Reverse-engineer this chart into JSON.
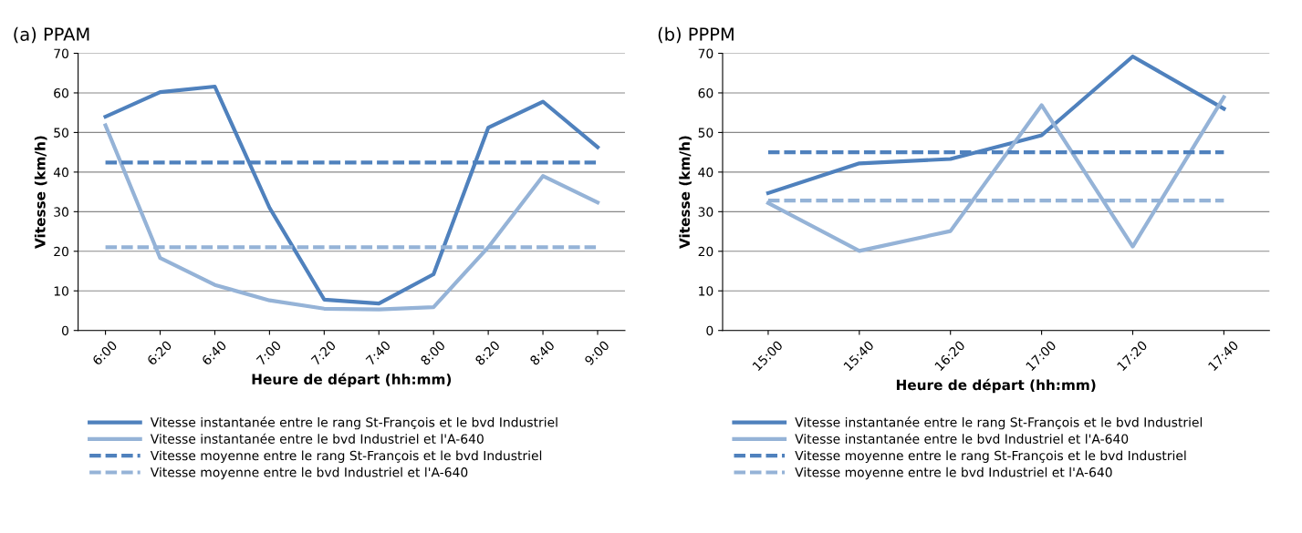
{
  "chart_data": [
    {
      "type": "line",
      "title": "(a) PPAM",
      "xlabel": "Heure de départ (hh:mm)",
      "ylabel": "Vitesse (km/h)",
      "categories": [
        "6:00",
        "6:20",
        "6:40",
        "7:00",
        "7:20",
        "7:40",
        "8:00",
        "8:20",
        "8:40",
        "9:00"
      ],
      "ylim": [
        0,
        70
      ],
      "yticks": [
        0,
        10,
        20,
        30,
        40,
        50,
        60,
        70
      ],
      "grid": "y",
      "legend": "bottom",
      "marker": "none",
      "series": [
        {
          "name": "Vitesse instantanée entre le rang St-François et le bvd Industriel",
          "color": "#4f81bd",
          "line_style": "solid",
          "values": [
            54,
            60.2,
            61.6,
            31,
            7.8,
            6.8,
            14.2,
            51.2,
            57.8,
            46.3
          ]
        },
        {
          "name": "Vitesse instantanée entre le bvd Industriel et l'A-640",
          "color": "#95b3d7",
          "line_style": "solid",
          "values": [
            51.8,
            18.3,
            11.5,
            7.6,
            5.5,
            5.3,
            5.9,
            21,
            39,
            32.3
          ]
        },
        {
          "name": "Vitesse moyenne entre le rang St-François et le bvd Industriel",
          "color": "#4f81bd",
          "line_style": "dashed",
          "values": [
            42.4,
            42.4,
            42.4,
            42.4,
            42.4,
            42.4,
            42.4,
            42.4,
            42.4,
            42.4
          ]
        },
        {
          "name": "Vitesse moyenne entre le bvd Industriel et l'A-640",
          "color": "#95b3d7",
          "line_style": "dashed",
          "values": [
            21,
            21,
            21,
            21,
            21,
            21,
            21,
            21,
            21,
            21
          ]
        }
      ]
    },
    {
      "type": "line",
      "title": "(b) PPPM",
      "xlabel": "Heure de départ (hh:mm)",
      "ylabel": "Vitesse (km/h)",
      "categories": [
        "15:00",
        "15:40",
        "16:20",
        "17:00",
        "17:20",
        "17:40"
      ],
      "ylim": [
        0,
        70
      ],
      "yticks": [
        0,
        10,
        20,
        30,
        40,
        50,
        60,
        70
      ],
      "grid": "y",
      "legend": "bottom",
      "marker": "none",
      "series": [
        {
          "name": "Vitesse instantanée entre le rang St-François et le bvd Industriel",
          "color": "#4f81bd",
          "line_style": "solid",
          "values": [
            34.7,
            42.2,
            43.3,
            49.3,
            69.2,
            56
          ]
        },
        {
          "name": "Vitesse instantanée entre le bvd Industriel et l'A-640",
          "color": "#95b3d7",
          "line_style": "solid",
          "values": [
            32.2,
            20.1,
            25.1,
            56.9,
            21.2,
            58.9
          ]
        },
        {
          "name": "Vitesse moyenne entre le rang St-François et le bvd Industriel",
          "color": "#4f81bd",
          "line_style": "dashed",
          "values": [
            45,
            45,
            45,
            45,
            45,
            45
          ]
        },
        {
          "name": "Vitesse moyenne entre le bvd Industriel et l'A-640",
          "color": "#95b3d7",
          "line_style": "dashed",
          "values": [
            32.8,
            32.8,
            32.8,
            32.8,
            32.8,
            32.8
          ]
        }
      ]
    }
  ]
}
